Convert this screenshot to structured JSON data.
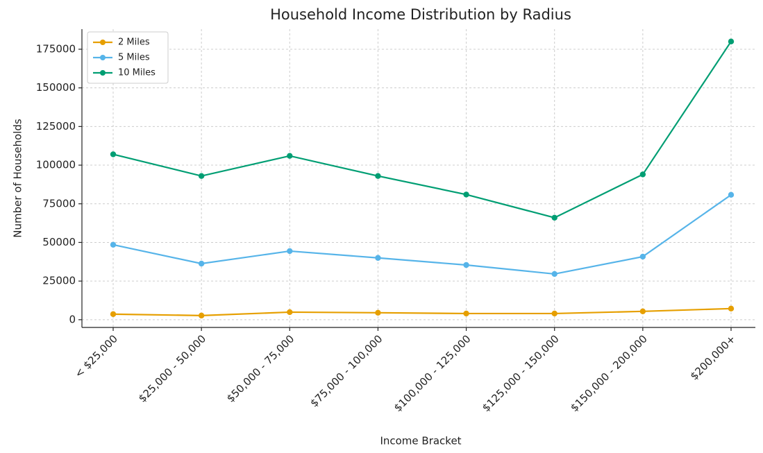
{
  "chart_data": {
    "type": "line",
    "title": "Household Income Distribution by Radius",
    "xlabel": "Income Bracket",
    "ylabel": "Number of Households",
    "categories": [
      "< $25,000",
      "$25,000 - 50,000",
      "$50,000 - 75,000",
      "$75,000 - 100,000",
      "$100,000 - 125,000",
      "$125,000 - 150,000",
      "$150,000 - 200,000",
      "$200,000+"
    ],
    "series": [
      {
        "name": "2 Miles",
        "color": "#e69f00",
        "values": [
          3600,
          2700,
          4900,
          4500,
          4000,
          4000,
          5400,
          7200
        ]
      },
      {
        "name": "5 Miles",
        "color": "#56b4e9",
        "values": [
          48500,
          36300,
          44400,
          40000,
          35400,
          29600,
          40800,
          80800
        ]
      },
      {
        "name": "10 Miles",
        "color": "#009e73",
        "values": [
          107000,
          93000,
          106000,
          93000,
          81000,
          66000,
          94000,
          180000
        ]
      }
    ],
    "ylim": [
      -5000,
      188000
    ],
    "yticks": [
      0,
      25000,
      50000,
      75000,
      100000,
      125000,
      150000,
      175000
    ],
    "grid": true,
    "legend": "upper left"
  }
}
